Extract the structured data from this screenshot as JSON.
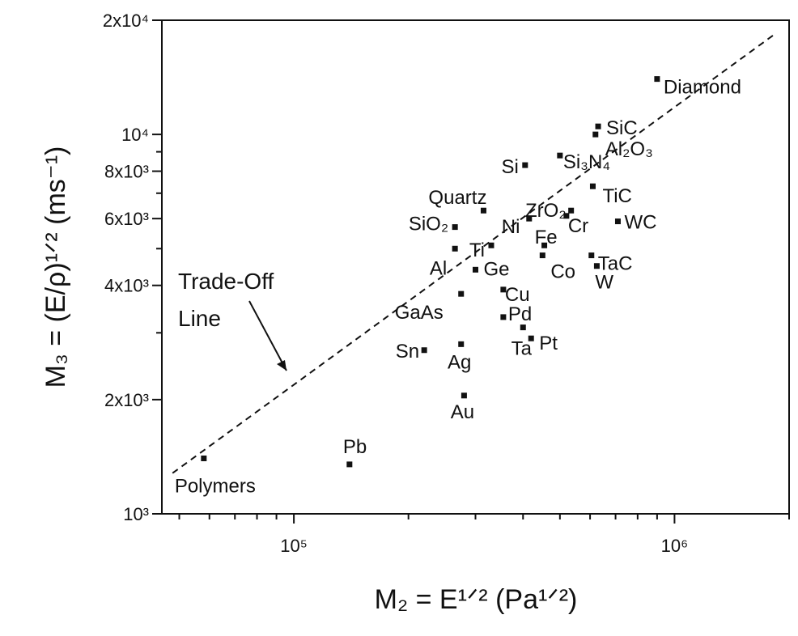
{
  "chart_data": {
    "type": "scatter",
    "x_scale": "log",
    "y_scale": "log",
    "xlim": [
      45000,
      2000000
    ],
    "ylim": [
      1000,
      20000
    ],
    "grid": false,
    "xlabel": "M₂ = E¹ᐟ² (Pa¹ᐟ²)",
    "ylabel": "M₃ = (E/ρ)¹ᐟ² (ms⁻¹)",
    "x_ticks": [
      {
        "value": 100000,
        "label": "10⁵"
      },
      {
        "value": 1000000,
        "label": "10⁶"
      }
    ],
    "y_ticks": [
      {
        "value": 1000,
        "label": "10³"
      },
      {
        "value": 2000,
        "label": "2x10³"
      },
      {
        "value": 4000,
        "label": "4x10³"
      },
      {
        "value": 6000,
        "label": "6x10³"
      },
      {
        "value": 8000,
        "label": "8x10³"
      },
      {
        "value": 10000,
        "label": "10⁴"
      },
      {
        "value": 20000,
        "label": "2x10⁴"
      }
    ],
    "points": [
      {
        "label": "Diamond",
        "x": 900000,
        "y": 14000
      },
      {
        "label": "SiC",
        "x": 630000,
        "y": 10500
      },
      {
        "label": "Al₂O₃",
        "x": 620000,
        "y": 10000
      },
      {
        "label": "Si₃N₄",
        "x": 500000,
        "y": 8800
      },
      {
        "label": "Si",
        "x": 405000,
        "y": 8300
      },
      {
        "label": "TiC",
        "x": 610000,
        "y": 7300
      },
      {
        "label": "Quartz",
        "x": 315000,
        "y": 6300
      },
      {
        "label": "ZrO₂",
        "x": 535000,
        "y": 6300
      },
      {
        "label": "SiO₂",
        "x": 265000,
        "y": 5700
      },
      {
        "label": "Cr",
        "x": 520000,
        "y": 6100
      },
      {
        "label": "WC",
        "x": 710000,
        "y": 5900
      },
      {
        "label": "Ti",
        "x": 330000,
        "y": 5100
      },
      {
        "label": "Al",
        "x": 265000,
        "y": 5000
      },
      {
        "label": "Ni",
        "x": 415000,
        "y": 6000
      },
      {
        "label": "Fe",
        "x": 455000,
        "y": 5100
      },
      {
        "label": "TaC",
        "x": 605000,
        "y": 4800
      },
      {
        "label": "Ge",
        "x": 300000,
        "y": 4400
      },
      {
        "label": "Co",
        "x": 450000,
        "y": 4800
      },
      {
        "label": "W",
        "x": 625000,
        "y": 4500
      },
      {
        "label": "Cu",
        "x": 355000,
        "y": 3900
      },
      {
        "label": "GaAs",
        "x": 275000,
        "y": 3800
      },
      {
        "label": "Pd",
        "x": 355000,
        "y": 3300
      },
      {
        "label": "Ta",
        "x": 400000,
        "y": 3100
      },
      {
        "label": "Pt",
        "x": 420000,
        "y": 2900
      },
      {
        "label": "Sn",
        "x": 220000,
        "y": 2700
      },
      {
        "label": "Ag",
        "x": 275000,
        "y": 2800
      },
      {
        "label": "Au",
        "x": 280000,
        "y": 2050
      },
      {
        "label": "Pb",
        "x": 140000,
        "y": 1350
      },
      {
        "label": "Polymers",
        "x": 58000,
        "y": 1400
      }
    ],
    "annotations": [
      {
        "text_lines": [
          "Trade-Off",
          "Line"
        ]
      }
    ],
    "tradeoff_line": [
      [
        48000,
        1280
      ],
      [
        1850000,
        18500
      ]
    ]
  }
}
